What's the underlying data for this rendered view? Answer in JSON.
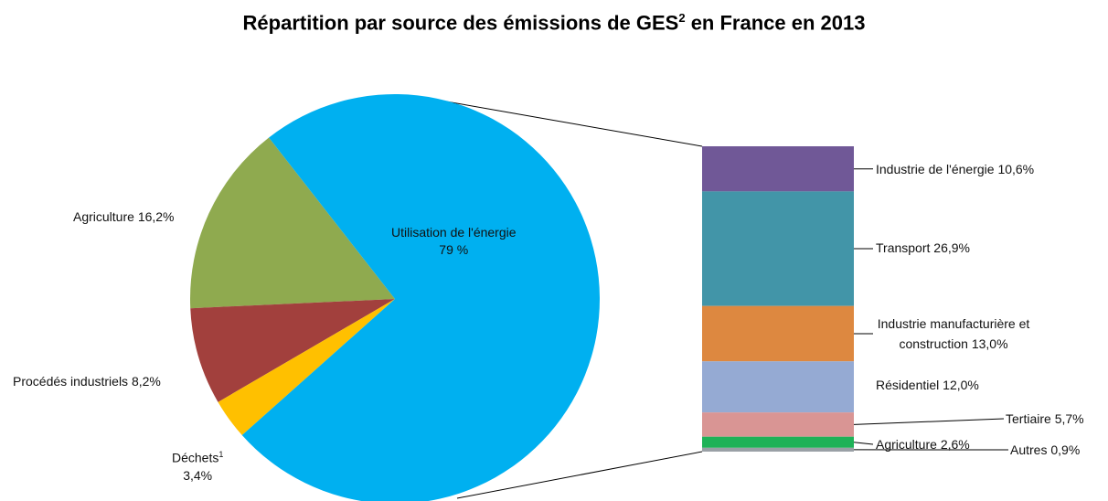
{
  "chart_data": [
    {
      "type": "pie",
      "title": [
        "Répartition par source des émissions de GES",
        "2",
        " en France en 2013"
      ],
      "categories": [
        "Agriculture",
        "Procédés industriels",
        "Déchets",
        "Utilisation de l'énergie"
      ],
      "notes": [
        null,
        null,
        "1",
        null
      ],
      "values": [
        16.2,
        8.2,
        3.4,
        79
      ],
      "value_labels": [
        "16,2%",
        "8,2%",
        "3,4%",
        "79 %"
      ],
      "colors": [
        "#8faa4f",
        "#a2403d",
        "#ffc000",
        "#00b0f0"
      ]
    },
    {
      "type": "bar",
      "categories": [
        "Industrie de l'énergie",
        "Transport",
        "Industrie manufacturière et construction",
        "Résidentiel",
        "Tertiaire",
        "Agriculture",
        "Autres"
      ],
      "values": [
        10.6,
        26.9,
        13.0,
        12.0,
        5.7,
        2.6,
        0.9
      ],
      "value_labels": [
        "10,6%",
        "26,9%",
        "13,0%",
        "12,0%",
        "5,7%",
        "2,6%",
        "0,9%"
      ],
      "colors": [
        "#705897",
        "#4295a8",
        "#dd8840",
        "#95aad3",
        "#d99594",
        "#1fb258",
        "#9aa0a6"
      ]
    }
  ]
}
